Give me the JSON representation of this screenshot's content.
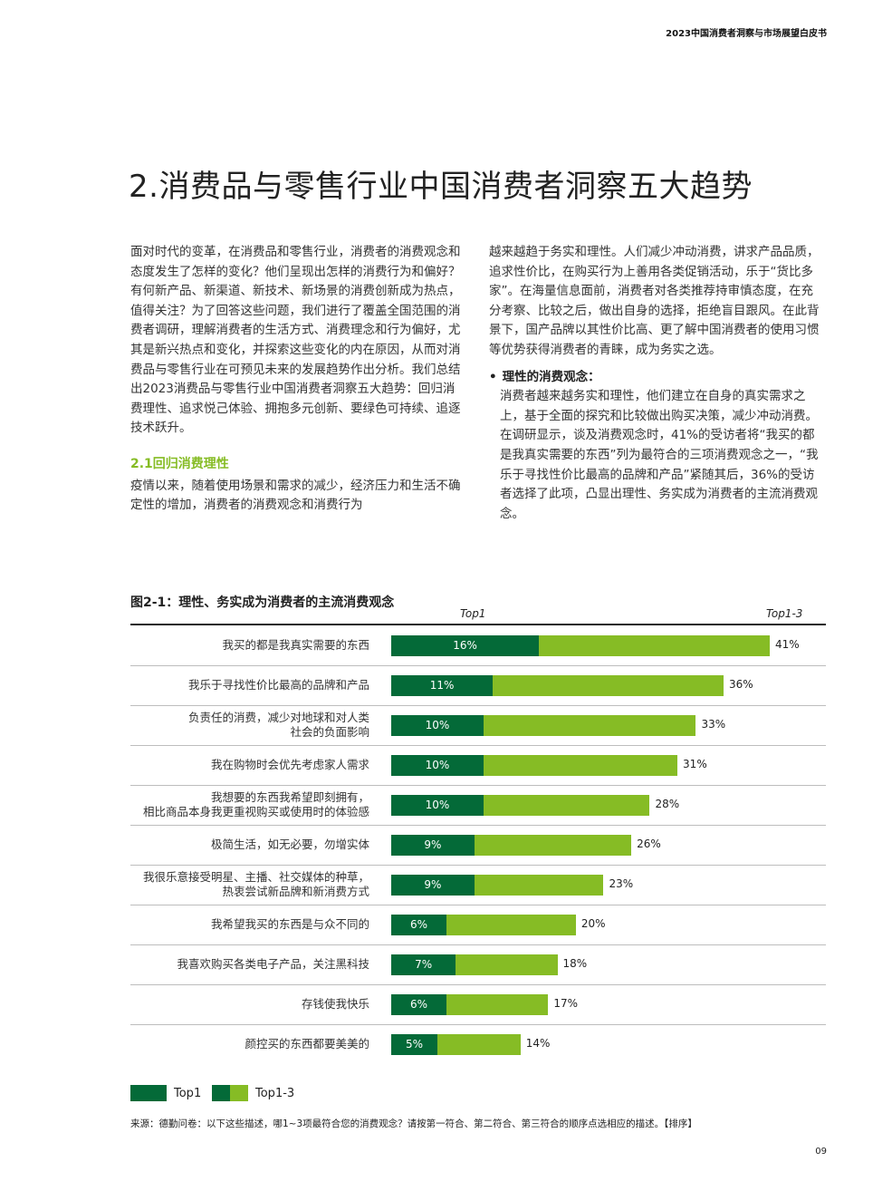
{
  "header": {
    "title": "2023中国消费者洞察与市场展望白皮书"
  },
  "main_title": "2.消费品与零售行业中国消费者洞察五大趋势",
  "left_column": {
    "intro": "面对时代的变革，在消费品和零售行业，消费者的消费观念和态度发生了怎样的变化？他们呈现出怎样的消费行为和偏好？有何新产品、新渠道、新技术、新场景的消费创新成为热点，值得关注？为了回答这些问题，我们进行了覆盖全国范围的消费者调研，理解消费者的生活方式、消费理念和行为偏好，尤其是新兴热点和变化，并探索这些变化的内在原因，从而对消费品与零售行业在可预见未来的发展趋势作出分析。我们总结出2023消费品与零售行业中国消费者洞察五大趋势：回归消费理性、追求悦己体验、拥抱多元创新、要绿色可持续、追逐技术跃升。",
    "section_heading": "2.1回归消费理性",
    "section_text": "疫情以来，随着使用场景和需求的减少，经济压力和生活不确定性的增加，消费者的消费观念和消费行为"
  },
  "right_column": {
    "para": "越来越趋于务实和理性。人们减少冲动消费，讲求产品品质，追求性价比，在购买行为上善用各类促销活动，乐于“货比多家”。在海量信息面前，消费者对各类推荐持审慎态度，在充分考察、比较之后，做出自身的选择，拒绝盲目跟风。在此背景下，国产品牌以其性价比高、更了解中国消费者的使用习惯等优势获得消费者的青睐，成为务实之选。",
    "bullet_title": "理性的消费观念：",
    "bullet_text": "消费者越来越务实和理性，他们建立在自身的真实需求之上，基于全面的探究和比较做出购买决策，减少冲动消费。在调研显示，谈及消费观念时，41%的受访者将“我买的都是我真实需要的东西”列为最符合的三项消费观念之一，“我乐于寻找性价比最高的品牌和产品”紧随其后，36%的受访者选择了此项，凸显出理性、务实成为消费者的主流消费观念。"
  },
  "figure": {
    "title": "图2-1：理性、务实成为消费者的主流消费观念",
    "col_top1": "Top1",
    "col_top13": "Top1-3"
  },
  "chart_data": {
    "type": "bar",
    "orientation": "horizontal",
    "categories": [
      "我买的都是我真实需要的东西",
      "我乐于寻找性价比最高的品牌和产品",
      "负责任的消费，减少对地球和对人类\n社会的负面影响",
      "我在购物时会优先考虑家人需求",
      "我想要的东西我希望即刻拥有，\n相比商品本身我更重视购买或使用时的体验感",
      "极简生活，如无必要，勿增实体",
      "我很乐意接受明星、主播、社交媒体的种草，\n热衷尝试新品牌和新消费方式",
      "我希望我买的东西是与众不同的",
      "我喜欢购买各类电子产品，关注黑科技",
      "存钱使我快乐",
      "颜控买的东西都要美美的"
    ],
    "series": [
      {
        "name": "Top1",
        "values": [
          16,
          11,
          10,
          10,
          10,
          9,
          9,
          6,
          7,
          6,
          5
        ],
        "labels": [
          "16%",
          "11%",
          "10%",
          "10%",
          "10%",
          "9%",
          "9%",
          "6%",
          "7%",
          "6%",
          "5%"
        ],
        "color": "#046a38"
      },
      {
        "name": "Top1-3",
        "values": [
          41,
          36,
          33,
          31,
          28,
          26,
          23,
          20,
          18,
          17,
          14
        ],
        "labels": [
          "41%",
          "36%",
          "33%",
          "31%",
          "28%",
          "26%",
          "23%",
          "20%",
          "18%",
          "17%",
          "14%"
        ],
        "color": "#86bc25"
      }
    ],
    "xlim": [
      0,
      45
    ]
  },
  "legend": {
    "top1": "Top1",
    "top13": "Top1-3"
  },
  "source": "来源：德勤问卷：以下这些描述，哪1~3项最符合您的消费观念？请按第一符合、第二符合、第三符合的顺序点选相应的描述。【排序】",
  "page_number": "09"
}
